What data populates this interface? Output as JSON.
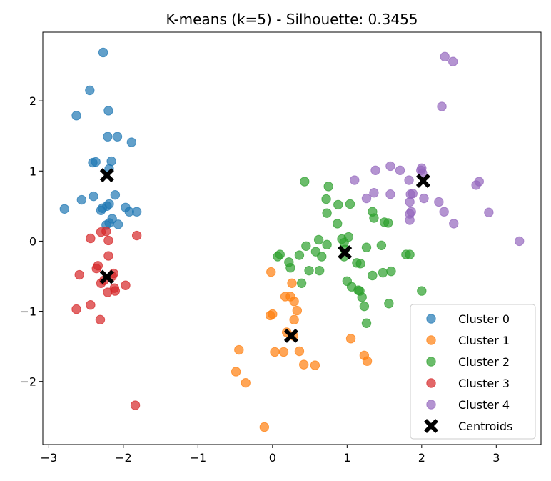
{
  "chart_data": {
    "type": "scatter",
    "title": "K-means (k=5) - Silhouette: 0.3455",
    "xlabel": "",
    "ylabel": "",
    "xlim": [
      -3.08,
      3.6
    ],
    "ylim": [
      -2.9,
      2.98
    ],
    "xticks": [
      -3,
      -2,
      -1,
      0,
      1,
      2,
      3
    ],
    "yticks": [
      -2,
      -1,
      0,
      1,
      2
    ],
    "grid": false,
    "legend_position": "lower-right",
    "series": [
      {
        "name": "Cluster 0",
        "color": "#1f77b4",
        "points": [
          [
            -2.27,
            2.69
          ],
          [
            -2.45,
            2.15
          ],
          [
            -2.63,
            1.79
          ],
          [
            -2.2,
            1.86
          ],
          [
            -2.21,
            1.49
          ],
          [
            -2.08,
            1.49
          ],
          [
            -1.89,
            1.41
          ],
          [
            -2.41,
            1.12
          ],
          [
            -2.37,
            1.13
          ],
          [
            -2.16,
            1.14
          ],
          [
            -2.19,
            1.03
          ],
          [
            -2.11,
            0.66
          ],
          [
            -2.4,
            0.64
          ],
          [
            -2.56,
            0.59
          ],
          [
            -2.19,
            0.53
          ],
          [
            -2.22,
            0.5
          ],
          [
            -2.28,
            0.47
          ],
          [
            -2.3,
            0.44
          ],
          [
            -2.79,
            0.46
          ],
          [
            -1.97,
            0.48
          ],
          [
            -1.92,
            0.42
          ],
          [
            -1.82,
            0.42
          ],
          [
            -2.15,
            0.32
          ],
          [
            -2.19,
            0.26
          ],
          [
            -2.23,
            0.23
          ],
          [
            -2.07,
            0.24
          ]
        ]
      },
      {
        "name": "Cluster 1",
        "color": "#ff7f0e",
        "points": [
          [
            -0.02,
            -0.44
          ],
          [
            0.26,
            -0.6
          ],
          [
            0.17,
            -0.79
          ],
          [
            0.24,
            -0.79
          ],
          [
            0.29,
            -0.86
          ],
          [
            0.33,
            -0.99
          ],
          [
            -0.03,
            -1.06
          ],
          [
            0.0,
            -1.04
          ],
          [
            0.29,
            -1.12
          ],
          [
            0.19,
            -1.3
          ],
          [
            0.28,
            -1.35
          ],
          [
            1.05,
            -1.39
          ],
          [
            -0.45,
            -1.55
          ],
          [
            0.03,
            -1.58
          ],
          [
            0.15,
            -1.58
          ],
          [
            0.36,
            -1.57
          ],
          [
            1.23,
            -1.63
          ],
          [
            1.27,
            -1.71
          ],
          [
            0.42,
            -1.76
          ],
          [
            0.57,
            -1.77
          ],
          [
            -0.49,
            -1.86
          ],
          [
            -0.36,
            -2.02
          ],
          [
            -0.11,
            -2.65
          ]
        ]
      },
      {
        "name": "Cluster 2",
        "color": "#2ca02c",
        "points": [
          [
            0.43,
            0.85
          ],
          [
            0.75,
            0.78
          ],
          [
            0.72,
            0.6
          ],
          [
            1.04,
            0.53
          ],
          [
            0.88,
            0.52
          ],
          [
            0.73,
            0.4
          ],
          [
            1.34,
            0.42
          ],
          [
            1.36,
            0.33
          ],
          [
            0.87,
            0.25
          ],
          [
            1.5,
            0.27
          ],
          [
            1.55,
            0.26
          ],
          [
            1.02,
            0.06
          ],
          [
            0.93,
            0.03
          ],
          [
            0.62,
            0.02
          ],
          [
            0.96,
            -0.02
          ],
          [
            0.73,
            -0.05
          ],
          [
            0.45,
            -0.07
          ],
          [
            1.46,
            -0.06
          ],
          [
            1.26,
            -0.09
          ],
          [
            0.97,
            -0.12
          ],
          [
            0.58,
            -0.15
          ],
          [
            0.36,
            -0.2
          ],
          [
            0.1,
            -0.19
          ],
          [
            0.07,
            -0.22
          ],
          [
            0.66,
            -0.22
          ],
          [
            1.79,
            -0.19
          ],
          [
            1.84,
            -0.19
          ],
          [
            0.96,
            -0.22
          ],
          [
            0.22,
            -0.3
          ],
          [
            1.13,
            -0.31
          ],
          [
            1.18,
            -0.32
          ],
          [
            0.24,
            -0.38
          ],
          [
            0.49,
            -0.42
          ],
          [
            0.63,
            -0.42
          ],
          [
            1.59,
            -0.43
          ],
          [
            1.48,
            -0.45
          ],
          [
            1.34,
            -0.49
          ],
          [
            0.39,
            -0.6
          ],
          [
            1.0,
            -0.57
          ],
          [
            1.06,
            -0.65
          ],
          [
            1.15,
            -0.7
          ],
          [
            1.17,
            -0.71
          ],
          [
            2.0,
            -0.71
          ],
          [
            1.2,
            -0.8
          ],
          [
            1.56,
            -0.89
          ],
          [
            1.23,
            -0.93
          ],
          [
            1.26,
            -1.17
          ]
        ]
      },
      {
        "name": "Cluster 3",
        "color": "#d62728",
        "points": [
          [
            -2.3,
            0.13
          ],
          [
            -2.23,
            0.14
          ],
          [
            -2.44,
            0.04
          ],
          [
            -1.82,
            0.08
          ],
          [
            -2.2,
            0.01
          ],
          [
            -2.2,
            -0.21
          ],
          [
            -2.34,
            -0.35
          ],
          [
            -2.36,
            -0.39
          ],
          [
            -2.59,
            -0.48
          ],
          [
            -2.13,
            -0.46
          ],
          [
            -2.15,
            -0.5
          ],
          [
            -2.26,
            -0.56
          ],
          [
            -1.97,
            -0.63
          ],
          [
            -2.3,
            -0.6
          ],
          [
            -2.12,
            -0.67
          ],
          [
            -2.11,
            -0.71
          ],
          [
            -2.21,
            -0.73
          ],
          [
            -2.44,
            -0.91
          ],
          [
            -2.63,
            -0.97
          ],
          [
            -2.31,
            -1.12
          ],
          [
            -1.84,
            -2.34
          ]
        ]
      },
      {
        "name": "Cluster 4",
        "color": "#9467bd",
        "points": [
          [
            2.31,
            2.63
          ],
          [
            2.42,
            2.56
          ],
          [
            2.27,
            1.92
          ],
          [
            1.58,
            1.07
          ],
          [
            1.99,
            1.01
          ],
          [
            2.0,
            1.04
          ],
          [
            1.71,
            1.01
          ],
          [
            1.38,
            1.01
          ],
          [
            2.01,
            0.97
          ],
          [
            1.83,
            0.87
          ],
          [
            1.1,
            0.87
          ],
          [
            2.77,
            0.85
          ],
          [
            2.73,
            0.8
          ],
          [
            1.36,
            0.69
          ],
          [
            1.88,
            0.68
          ],
          [
            1.58,
            0.67
          ],
          [
            1.85,
            0.67
          ],
          [
            1.26,
            0.61
          ],
          [
            2.03,
            0.61
          ],
          [
            2.23,
            0.56
          ],
          [
            1.84,
            0.56
          ],
          [
            1.86,
            0.42
          ],
          [
            1.84,
            0.39
          ],
          [
            2.3,
            0.42
          ],
          [
            2.9,
            0.41
          ],
          [
            1.84,
            0.3
          ],
          [
            2.43,
            0.25
          ],
          [
            3.31,
            0.0
          ]
        ]
      }
    ],
    "centroids": {
      "name": "Centroids",
      "color": "#000000",
      "points": [
        [
          -2.22,
          0.94
        ],
        [
          0.25,
          -1.35
        ],
        [
          0.97,
          -0.16
        ],
        [
          -2.22,
          -0.51
        ],
        [
          2.02,
          0.86
        ]
      ]
    }
  }
}
